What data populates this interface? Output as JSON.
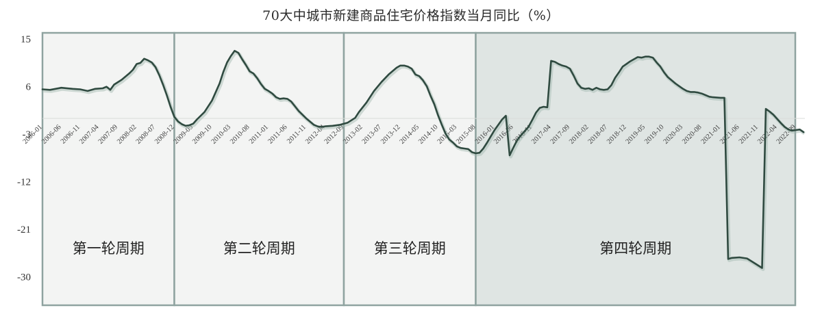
{
  "chart_data": {
    "type": "line",
    "title": "70大中城市新建商品住宅价格指数当月同比（%）",
    "xlabel": "",
    "ylabel": "",
    "ylim": [
      -36,
      16.5
    ],
    "yticks": [
      15,
      6,
      -3,
      -12,
      -21,
      -30
    ],
    "grid": false,
    "zero_line": true,
    "x_tick_labels": [
      "2006-01",
      "2006-06",
      "2006-11",
      "2007-04",
      "2007-09",
      "2008-02",
      "2008-07",
      "2008-12",
      "2009-05",
      "2009-10",
      "2010-03",
      "2010-08",
      "2011-01",
      "2011-06",
      "2011-11",
      "2012-04",
      "2012-09",
      "2013-02",
      "2013-07",
      "2013-12",
      "2014-05",
      "2014-10",
      "2015-03",
      "2015-08",
      "2016-01",
      "2016-06",
      "2016-11",
      "2017-04",
      "2017-09",
      "2018-02",
      "2018-07",
      "2018-12",
      "2019-05",
      "2019-10",
      "2020-03",
      "2020-08",
      "2021-01",
      "2021-06",
      "2021-11",
      "2022-04",
      "2022-09"
    ],
    "series": [
      {
        "name": "70大中城市新建商品住宅价格指数当月同比",
        "color": "#2f4a40",
        "points": [
          [
            "2006-01",
            5.5
          ],
          [
            "2006-03",
            5.4
          ],
          [
            "2006-06",
            5.8
          ],
          [
            "2006-09",
            5.6
          ],
          [
            "2006-11",
            5.5
          ],
          [
            "2007-01",
            5.2
          ],
          [
            "2007-03",
            5.6
          ],
          [
            "2007-05",
            5.7
          ],
          [
            "2007-06",
            6.0
          ],
          [
            "2007-07",
            5.4
          ],
          [
            "2007-08",
            6.4
          ],
          [
            "2007-10",
            7.3
          ],
          [
            "2007-12",
            8.5
          ],
          [
            "2008-01",
            9.2
          ],
          [
            "2008-02",
            10.3
          ],
          [
            "2008-03",
            10.5
          ],
          [
            "2008-04",
            11.3
          ],
          [
            "2008-05",
            11.0
          ],
          [
            "2008-06",
            10.6
          ],
          [
            "2008-07",
            9.7
          ],
          [
            "2008-08",
            8.2
          ],
          [
            "2008-09",
            6.4
          ],
          [
            "2008-10",
            4.4
          ],
          [
            "2008-11",
            2.2
          ],
          [
            "2008-12",
            0.3
          ],
          [
            "2009-01",
            -0.6
          ],
          [
            "2009-02",
            -1.1
          ],
          [
            "2009-03",
            -1.4
          ],
          [
            "2009-04",
            -1.3
          ],
          [
            "2009-05",
            -1.0
          ],
          [
            "2009-06",
            -0.2
          ],
          [
            "2009-08",
            1.2
          ],
          [
            "2009-10",
            3.4
          ],
          [
            "2009-12",
            6.6
          ],
          [
            "2010-01",
            8.8
          ],
          [
            "2010-02",
            10.6
          ],
          [
            "2010-03",
            11.8
          ],
          [
            "2010-04",
            12.8
          ],
          [
            "2010-05",
            12.4
          ],
          [
            "2010-06",
            11.2
          ],
          [
            "2010-07",
            10.1
          ],
          [
            "2010-08",
            8.9
          ],
          [
            "2010-09",
            8.5
          ],
          [
            "2010-10",
            7.6
          ],
          [
            "2010-11",
            6.5
          ],
          [
            "2010-12",
            5.6
          ],
          [
            "2011-01",
            5.2
          ],
          [
            "2011-02",
            4.7
          ],
          [
            "2011-03",
            4.0
          ],
          [
            "2011-04",
            3.7
          ],
          [
            "2011-05",
            3.8
          ],
          [
            "2011-06",
            3.7
          ],
          [
            "2011-07",
            3.2
          ],
          [
            "2011-08",
            2.3
          ],
          [
            "2011-09",
            1.4
          ],
          [
            "2011-10",
            0.7
          ],
          [
            "2011-11",
            0.0
          ],
          [
            "2011-12",
            -0.6
          ],
          [
            "2012-01",
            -1.2
          ],
          [
            "2012-02",
            -1.5
          ],
          [
            "2012-03",
            -1.6
          ],
          [
            "2012-04",
            -1.5
          ],
          [
            "2012-06",
            -1.4
          ],
          [
            "2012-08",
            -1.2
          ],
          [
            "2012-10",
            -0.8
          ],
          [
            "2012-12",
            0.1
          ],
          [
            "2013-01",
            1.2
          ],
          [
            "2013-03",
            3.0
          ],
          [
            "2013-05",
            5.2
          ],
          [
            "2013-07",
            6.9
          ],
          [
            "2013-09",
            8.4
          ],
          [
            "2013-11",
            9.6
          ],
          [
            "2013-12",
            10.0
          ],
          [
            "2014-01",
            10.0
          ],
          [
            "2014-02",
            9.8
          ],
          [
            "2014-03",
            9.4
          ],
          [
            "2014-04",
            8.3
          ],
          [
            "2014-05",
            8.0
          ],
          [
            "2014-06",
            7.2
          ],
          [
            "2014-07",
            6.1
          ],
          [
            "2014-08",
            4.3
          ],
          [
            "2014-09",
            2.7
          ],
          [
            "2014-10",
            0.6
          ],
          [
            "2014-11",
            -1.2
          ],
          [
            "2014-12",
            -2.9
          ],
          [
            "2015-01",
            -4.0
          ],
          [
            "2015-02",
            -4.6
          ],
          [
            "2015-03",
            -5.3
          ],
          [
            "2015-04",
            -5.6
          ],
          [
            "2015-05",
            -5.7
          ],
          [
            "2015-06",
            -5.8
          ],
          [
            "2015-07",
            -6.4
          ],
          [
            "2015-08",
            -6.6
          ],
          [
            "2015-09",
            -6.5
          ],
          [
            "2015-10",
            -5.7
          ],
          [
            "2015-11",
            -4.6
          ],
          [
            "2015-12",
            -3.4
          ],
          [
            "2016-01",
            -2.2
          ],
          [
            "2016-02",
            -1.2
          ],
          [
            "2016-03",
            -0.2
          ],
          [
            "2016-04",
            0.5
          ],
          [
            "2016-05",
            -7.0
          ],
          [
            "2016-06",
            -5.5
          ],
          [
            "2016-07",
            -4.1
          ],
          [
            "2016-08",
            -3.2
          ],
          [
            "2016-09",
            -2.4
          ],
          [
            "2016-10",
            -1.6
          ],
          [
            "2016-11",
            -0.3
          ],
          [
            "2016-12",
            1.1
          ],
          [
            "2017-01",
            2.0
          ],
          [
            "2017-02",
            2.2
          ],
          [
            "2017-03",
            2.1
          ],
          [
            "2017-04",
            10.9
          ],
          [
            "2017-05",
            10.7
          ],
          [
            "2017-06",
            10.3
          ],
          [
            "2017-07",
            10.0
          ],
          [
            "2017-08",
            9.8
          ],
          [
            "2017-09",
            9.4
          ],
          [
            "2017-10",
            8.1
          ],
          [
            "2017-11",
            6.6
          ],
          [
            "2017-12",
            5.8
          ],
          [
            "2018-01",
            5.6
          ],
          [
            "2018-02",
            5.7
          ],
          [
            "2018-03",
            5.4
          ],
          [
            "2018-04",
            5.8
          ],
          [
            "2018-05",
            5.5
          ],
          [
            "2018-06",
            5.4
          ],
          [
            "2018-07",
            5.5
          ],
          [
            "2018-08",
            6.3
          ],
          [
            "2018-09",
            7.7
          ],
          [
            "2018-10",
            8.7
          ],
          [
            "2018-11",
            9.8
          ],
          [
            "2018-12",
            10.3
          ],
          [
            "2019-01",
            10.8
          ],
          [
            "2019-02",
            11.2
          ],
          [
            "2019-03",
            11.6
          ],
          [
            "2019-04",
            11.5
          ],
          [
            "2019-05",
            11.7
          ],
          [
            "2019-06",
            11.7
          ],
          [
            "2019-07",
            11.5
          ],
          [
            "2019-08",
            10.6
          ],
          [
            "2019-09",
            9.8
          ],
          [
            "2019-10",
            8.7
          ],
          [
            "2019-11",
            7.8
          ],
          [
            "2019-12",
            7.2
          ],
          [
            "2020-01",
            6.6
          ],
          [
            "2020-02",
            6.1
          ],
          [
            "2020-03",
            5.6
          ],
          [
            "2020-04",
            5.2
          ],
          [
            "2020-05",
            5.0
          ],
          [
            "2020-06",
            5.0
          ],
          [
            "2020-07",
            4.9
          ],
          [
            "2020-08",
            4.7
          ],
          [
            "2020-09",
            4.4
          ],
          [
            "2020-10",
            4.1
          ],
          [
            "2020-11",
            4.0
          ],
          [
            "2021-01",
            3.9
          ],
          [
            "2021-02",
            3.9
          ],
          [
            "2021-03",
            -26.6
          ],
          [
            "2021-04",
            -26.4
          ],
          [
            "2021-06",
            -26.3
          ],
          [
            "2021-08",
            -26.5
          ],
          [
            "2021-10",
            -27.4
          ],
          [
            "2021-12",
            -28.3
          ],
          [
            "2022-01",
            1.8
          ],
          [
            "2022-02",
            1.3
          ],
          [
            "2022-03",
            0.7
          ],
          [
            "2022-04",
            -0.1
          ],
          [
            "2022-05",
            -0.9
          ],
          [
            "2022-06",
            -1.6
          ],
          [
            "2022-07",
            -2.1
          ],
          [
            "2022-08",
            -2.3
          ],
          [
            "2022-09",
            -2.2
          ],
          [
            "2022-10",
            -2.1
          ],
          [
            "2022-11",
            -2.6
          ]
        ]
      }
    ],
    "regions": [
      {
        "label": "第一轮周期",
        "start": "2006-01",
        "end": "2008-12",
        "fill": "#f3f4f3"
      },
      {
        "label": "第二轮周期",
        "start": "2008-12",
        "end": "2012-09",
        "fill": "#f3f4f3"
      },
      {
        "label": "第三轮周期",
        "start": "2012-09",
        "end": "2015-08",
        "fill": "#f3f4f3"
      },
      {
        "label": "第四轮周期",
        "start": "2015-08",
        "end": "2022-09",
        "fill": "#dfe5e3"
      }
    ],
    "region_border_color": "#8fa3a0",
    "legend": null
  }
}
